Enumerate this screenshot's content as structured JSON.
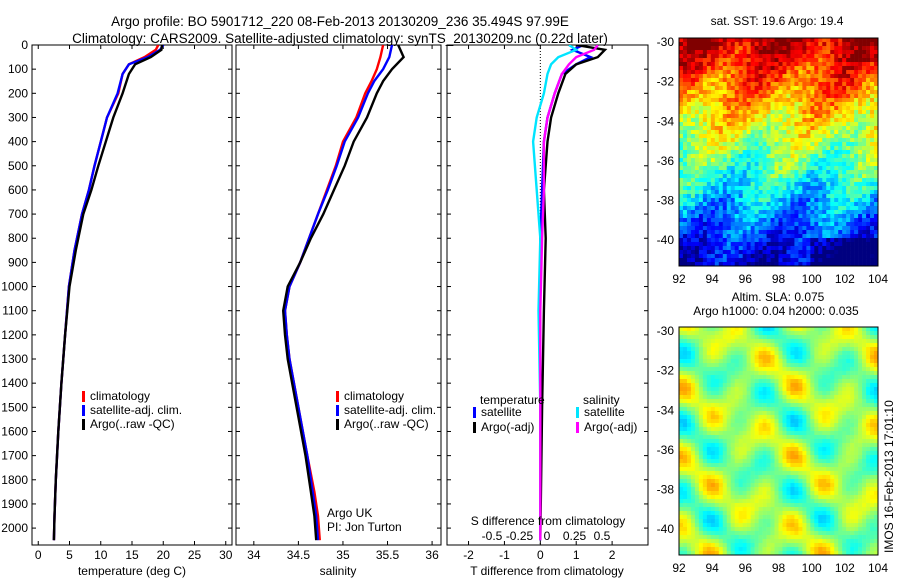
{
  "header": {
    "line1": "Argo profile: BO 5901712_220 08-Feb-2013 20130209_236 35.494S 97.99E",
    "line2": "Climatology: CARS2009. Satellite-adjusted climatology: synTS_20130209.nc (0.22d later)"
  },
  "side_label": "IMOS 16-Feb-2013 17:01:10",
  "colors": {
    "climatology": "#ff0000",
    "satellite": "#0000ff",
    "argo": "#000000",
    "salinity_satellite": "#00e5ff",
    "salinity_argo": "#ff00ff"
  },
  "chart_data": [
    {
      "type": "line",
      "id": "temperature",
      "xlabel": "temperature (deg C)",
      "ylabel": "",
      "xlim": [
        -1,
        31
      ],
      "ylim": [
        2070,
        0
      ],
      "xticks": [
        "0",
        "5",
        "10",
        "15",
        "20",
        "25",
        "30"
      ],
      "yticks": [
        "0",
        "100",
        "200",
        "300",
        "400",
        "500",
        "600",
        "700",
        "800",
        "900",
        "1000",
        "1100",
        "1200",
        "1300",
        "1400",
        "1500",
        "1600",
        "1700",
        "1800",
        "1900",
        "2000"
      ],
      "legend": [
        "climatology",
        "satellite-adj. clim.",
        "Argo(..raw -QC)"
      ],
      "series": [
        {
          "name": "climatology",
          "color": "#ff0000",
          "x": [
            19.2,
            18.8,
            17.0,
            14.5,
            13.5,
            12.8,
            11.0,
            10.0,
            9.0,
            8.1,
            7.0,
            5.8,
            4.9,
            4.3,
            3.7,
            3.2,
            2.8,
            2.6,
            2.5
          ],
          "y": [
            0,
            20,
            50,
            80,
            120,
            200,
            300,
            400,
            500,
            600,
            700,
            850,
            1000,
            1200,
            1400,
            1600,
            1800,
            1950,
            2050
          ]
        },
        {
          "name": "satellite-adj. clim.",
          "color": "#0000ff",
          "x": [
            20.0,
            19.5,
            17.5,
            14.5,
            13.5,
            12.7,
            11.0,
            10.0,
            9.0,
            8.1,
            7.0,
            5.8,
            4.9,
            4.3,
            3.7,
            3.2,
            2.8,
            2.6,
            2.5
          ],
          "y": [
            0,
            20,
            50,
            80,
            120,
            200,
            300,
            400,
            500,
            600,
            700,
            850,
            1000,
            1200,
            1400,
            1600,
            1800,
            1950,
            2050
          ]
        },
        {
          "name": "Argo(..raw -QC)",
          "color": "#000000",
          "x": [
            19.8,
            19.7,
            18.0,
            15.5,
            14.5,
            13.5,
            12.0,
            10.8,
            9.6,
            8.5,
            7.2,
            6.0,
            5.0,
            4.3,
            3.7,
            3.2,
            2.8,
            2.6,
            2.5
          ],
          "y": [
            0,
            20,
            50,
            80,
            120,
            200,
            300,
            400,
            500,
            600,
            700,
            850,
            1000,
            1200,
            1400,
            1600,
            1800,
            1950,
            2050
          ]
        }
      ]
    },
    {
      "type": "line",
      "id": "salinity",
      "xlabel": "salinity",
      "xlim": [
        33.8,
        36.1
      ],
      "ylim": [
        2070,
        0
      ],
      "xticks": [
        "34",
        "34.5",
        "35",
        "35.5",
        "36"
      ],
      "legend": [
        "climatology",
        "satellite-adj. clim.",
        "Argo(..raw -QC)"
      ],
      "annotation": [
        "Argo UK",
        "PI: Jon Turton"
      ],
      "series": [
        {
          "name": "climatology",
          "color": "#ff0000",
          "x": [
            35.45,
            35.42,
            35.38,
            35.32,
            35.25,
            35.15,
            35.0,
            34.92,
            34.82,
            34.72,
            34.62,
            34.52,
            34.4,
            34.35,
            34.37,
            34.4,
            34.5,
            34.6,
            34.68,
            34.72,
            34.74
          ],
          "y": [
            0,
            50,
            100,
            150,
            200,
            300,
            400,
            500,
            600,
            700,
            800,
            900,
            1000,
            1100,
            1200,
            1300,
            1500,
            1700,
            1850,
            1950,
            2050
          ]
        },
        {
          "name": "satellite-adj. clim.",
          "color": "#0000ff",
          "x": [
            35.55,
            35.52,
            35.45,
            35.35,
            35.28,
            35.17,
            35.02,
            34.93,
            34.83,
            34.72,
            34.62,
            34.52,
            34.4,
            34.35,
            34.37,
            34.4,
            34.5,
            34.6,
            34.66,
            34.7,
            34.72
          ],
          "y": [
            0,
            50,
            100,
            150,
            200,
            300,
            400,
            500,
            600,
            700,
            800,
            900,
            1000,
            1100,
            1200,
            1300,
            1500,
            1700,
            1850,
            1950,
            2050
          ]
        },
        {
          "name": "Argo(..raw -QC)",
          "color": "#000000",
          "x": [
            35.62,
            35.68,
            35.55,
            35.45,
            35.38,
            35.27,
            35.12,
            35.02,
            34.9,
            34.78,
            34.64,
            34.52,
            34.38,
            34.33,
            34.35,
            34.38,
            34.48,
            34.58,
            34.64,
            34.68,
            34.7
          ],
          "y": [
            0,
            50,
            100,
            150,
            200,
            300,
            400,
            500,
            600,
            700,
            800,
            900,
            1000,
            1100,
            1200,
            1300,
            1500,
            1700,
            1850,
            1950,
            2050
          ]
        }
      ]
    },
    {
      "type": "line",
      "id": "difference",
      "xlabel": "T difference from climatology",
      "top_label": "S difference from climatology",
      "xlim": [
        -2.6,
        3.0
      ],
      "ylim": [
        2070,
        0
      ],
      "xticks": [
        "-2",
        "-1",
        "0",
        "1",
        "2"
      ],
      "xticks_s": [
        "-0.5",
        "-0.25",
        "0",
        "0.25",
        "0.5"
      ],
      "legend_t_title": "temperature",
      "legend_s_title": "salinity",
      "legend": [
        "satellite",
        "Argo(-adj)",
        "satellite",
        "Argo(-adj)"
      ],
      "series": [
        {
          "name": "T satellite",
          "color": "#0000ff",
          "x": [
            1.2,
            0.9,
            1.4,
            1.0,
            0.6,
            0.4,
            0.2,
            0.1,
            0.05,
            0.0,
            0.0,
            0.0,
            0.0
          ],
          "y": [
            0,
            20,
            50,
            80,
            120,
            200,
            300,
            400,
            600,
            800,
            1100,
            1500,
            2050
          ]
        },
        {
          "name": "T Argo(-adj)",
          "color": "#000000",
          "x": [
            1.0,
            1.8,
            1.6,
            1.0,
            0.7,
            0.5,
            0.3,
            0.2,
            0.1,
            0.15,
            0.1,
            0.05,
            0.0
          ],
          "y": [
            0,
            20,
            50,
            80,
            120,
            200,
            300,
            400,
            600,
            800,
            1100,
            1500,
            2050
          ]
        },
        {
          "name": "S satellite",
          "color": "#00e5ff",
          "x": [
            0.8,
            1.0,
            0.5,
            0.3,
            0.2,
            0.1,
            -0.1,
            -0.2,
            -0.1,
            0.0,
            -0.05,
            0.0,
            0.0
          ],
          "y": [
            0,
            20,
            50,
            80,
            120,
            200,
            300,
            400,
            600,
            800,
            1100,
            1500,
            2050
          ]
        },
        {
          "name": "S Argo(-adj)",
          "color": "#ff00ff",
          "x": [
            1.6,
            1.5,
            1.0,
            0.8,
            0.6,
            0.4,
            0.2,
            0.1,
            0.1,
            0.05,
            0.0,
            0.0,
            0.0
          ],
          "y": [
            0,
            20,
            50,
            80,
            120,
            200,
            300,
            400,
            600,
            800,
            1100,
            1500,
            2050
          ]
        }
      ]
    },
    {
      "type": "heatmap",
      "id": "sst_map",
      "title": "sat. SST: 19.6 Argo: 19.4",
      "xlim": [
        92,
        104
      ],
      "ylim": [
        -41.3,
        -29.8
      ],
      "xticks": [
        "92",
        "94",
        "96",
        "98",
        "100",
        "102",
        "104"
      ],
      "yticks": [
        "-30",
        "-32",
        "-34",
        "-36",
        "-38",
        "-40"
      ],
      "marker": {
        "lon": 97.99,
        "lat": -35.494
      }
    },
    {
      "type": "heatmap",
      "id": "sla_map",
      "title": "Altim. SLA: 0.075",
      "subtitle": "Argo h1000: 0.04 h2000: 0.035",
      "xlim": [
        92,
        104
      ],
      "ylim": [
        -41.3,
        -29.8
      ],
      "xticks": [
        "92",
        "94",
        "96",
        "98",
        "100",
        "102",
        "104"
      ],
      "yticks": [
        "-30",
        "-32",
        "-34",
        "-36",
        "-38",
        "-40"
      ],
      "marker": {
        "lon": 97.99,
        "lat": -35.494
      }
    }
  ]
}
